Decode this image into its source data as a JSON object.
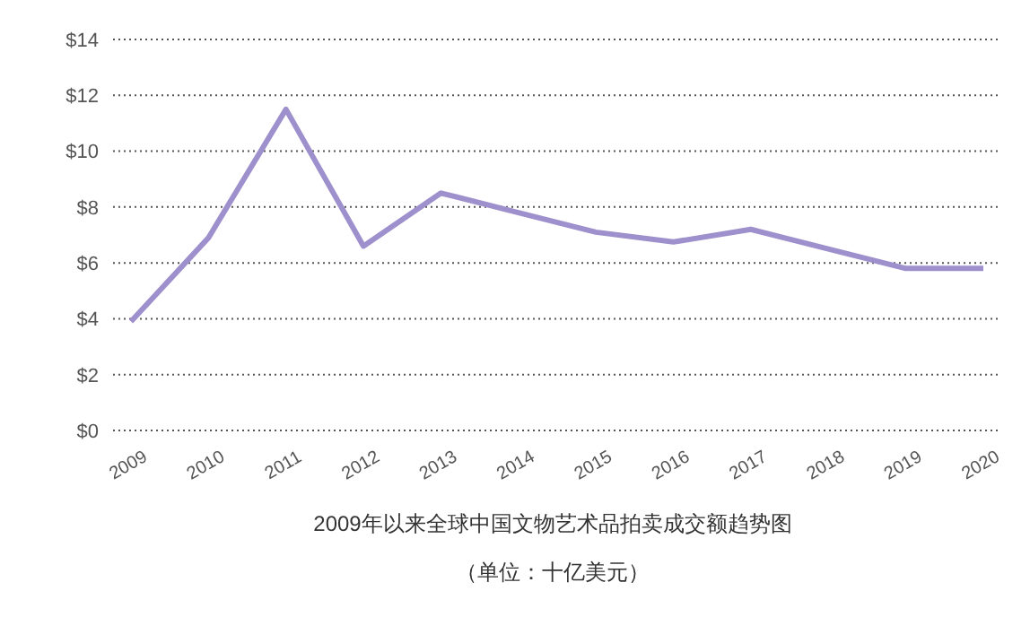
{
  "chart_data": {
    "type": "line",
    "title": "2009年以来全球中国文物艺术品拍卖成交额趋势图",
    "subtitle": "（单位：十亿美元）",
    "categories": [
      "2009",
      "2010",
      "2011",
      "2012",
      "2013",
      "2014",
      "2015",
      "2016",
      "2017",
      "2018",
      "2019",
      "2020"
    ],
    "series": [
      {
        "color": "#9d90cc",
        "values": [
          3.9,
          6.9,
          11.5,
          6.6,
          8.5,
          7.8,
          7.1,
          6.75,
          7.2,
          6.5,
          5.8,
          5.8
        ]
      }
    ],
    "ylim": [
      0,
      14
    ],
    "yticks": [
      {
        "value": 0,
        "label": "$0"
      },
      {
        "value": 2,
        "label": "$2"
      },
      {
        "value": 4,
        "label": "$4"
      },
      {
        "value": 6,
        "label": "$6"
      },
      {
        "value": 8,
        "label": "$8"
      },
      {
        "value": 10,
        "label": "$10"
      },
      {
        "value": 12,
        "label": "$12"
      },
      {
        "value": 14,
        "label": "$14"
      }
    ],
    "grid": "y",
    "marker": "none",
    "line_style": "solid",
    "legend": false
  }
}
